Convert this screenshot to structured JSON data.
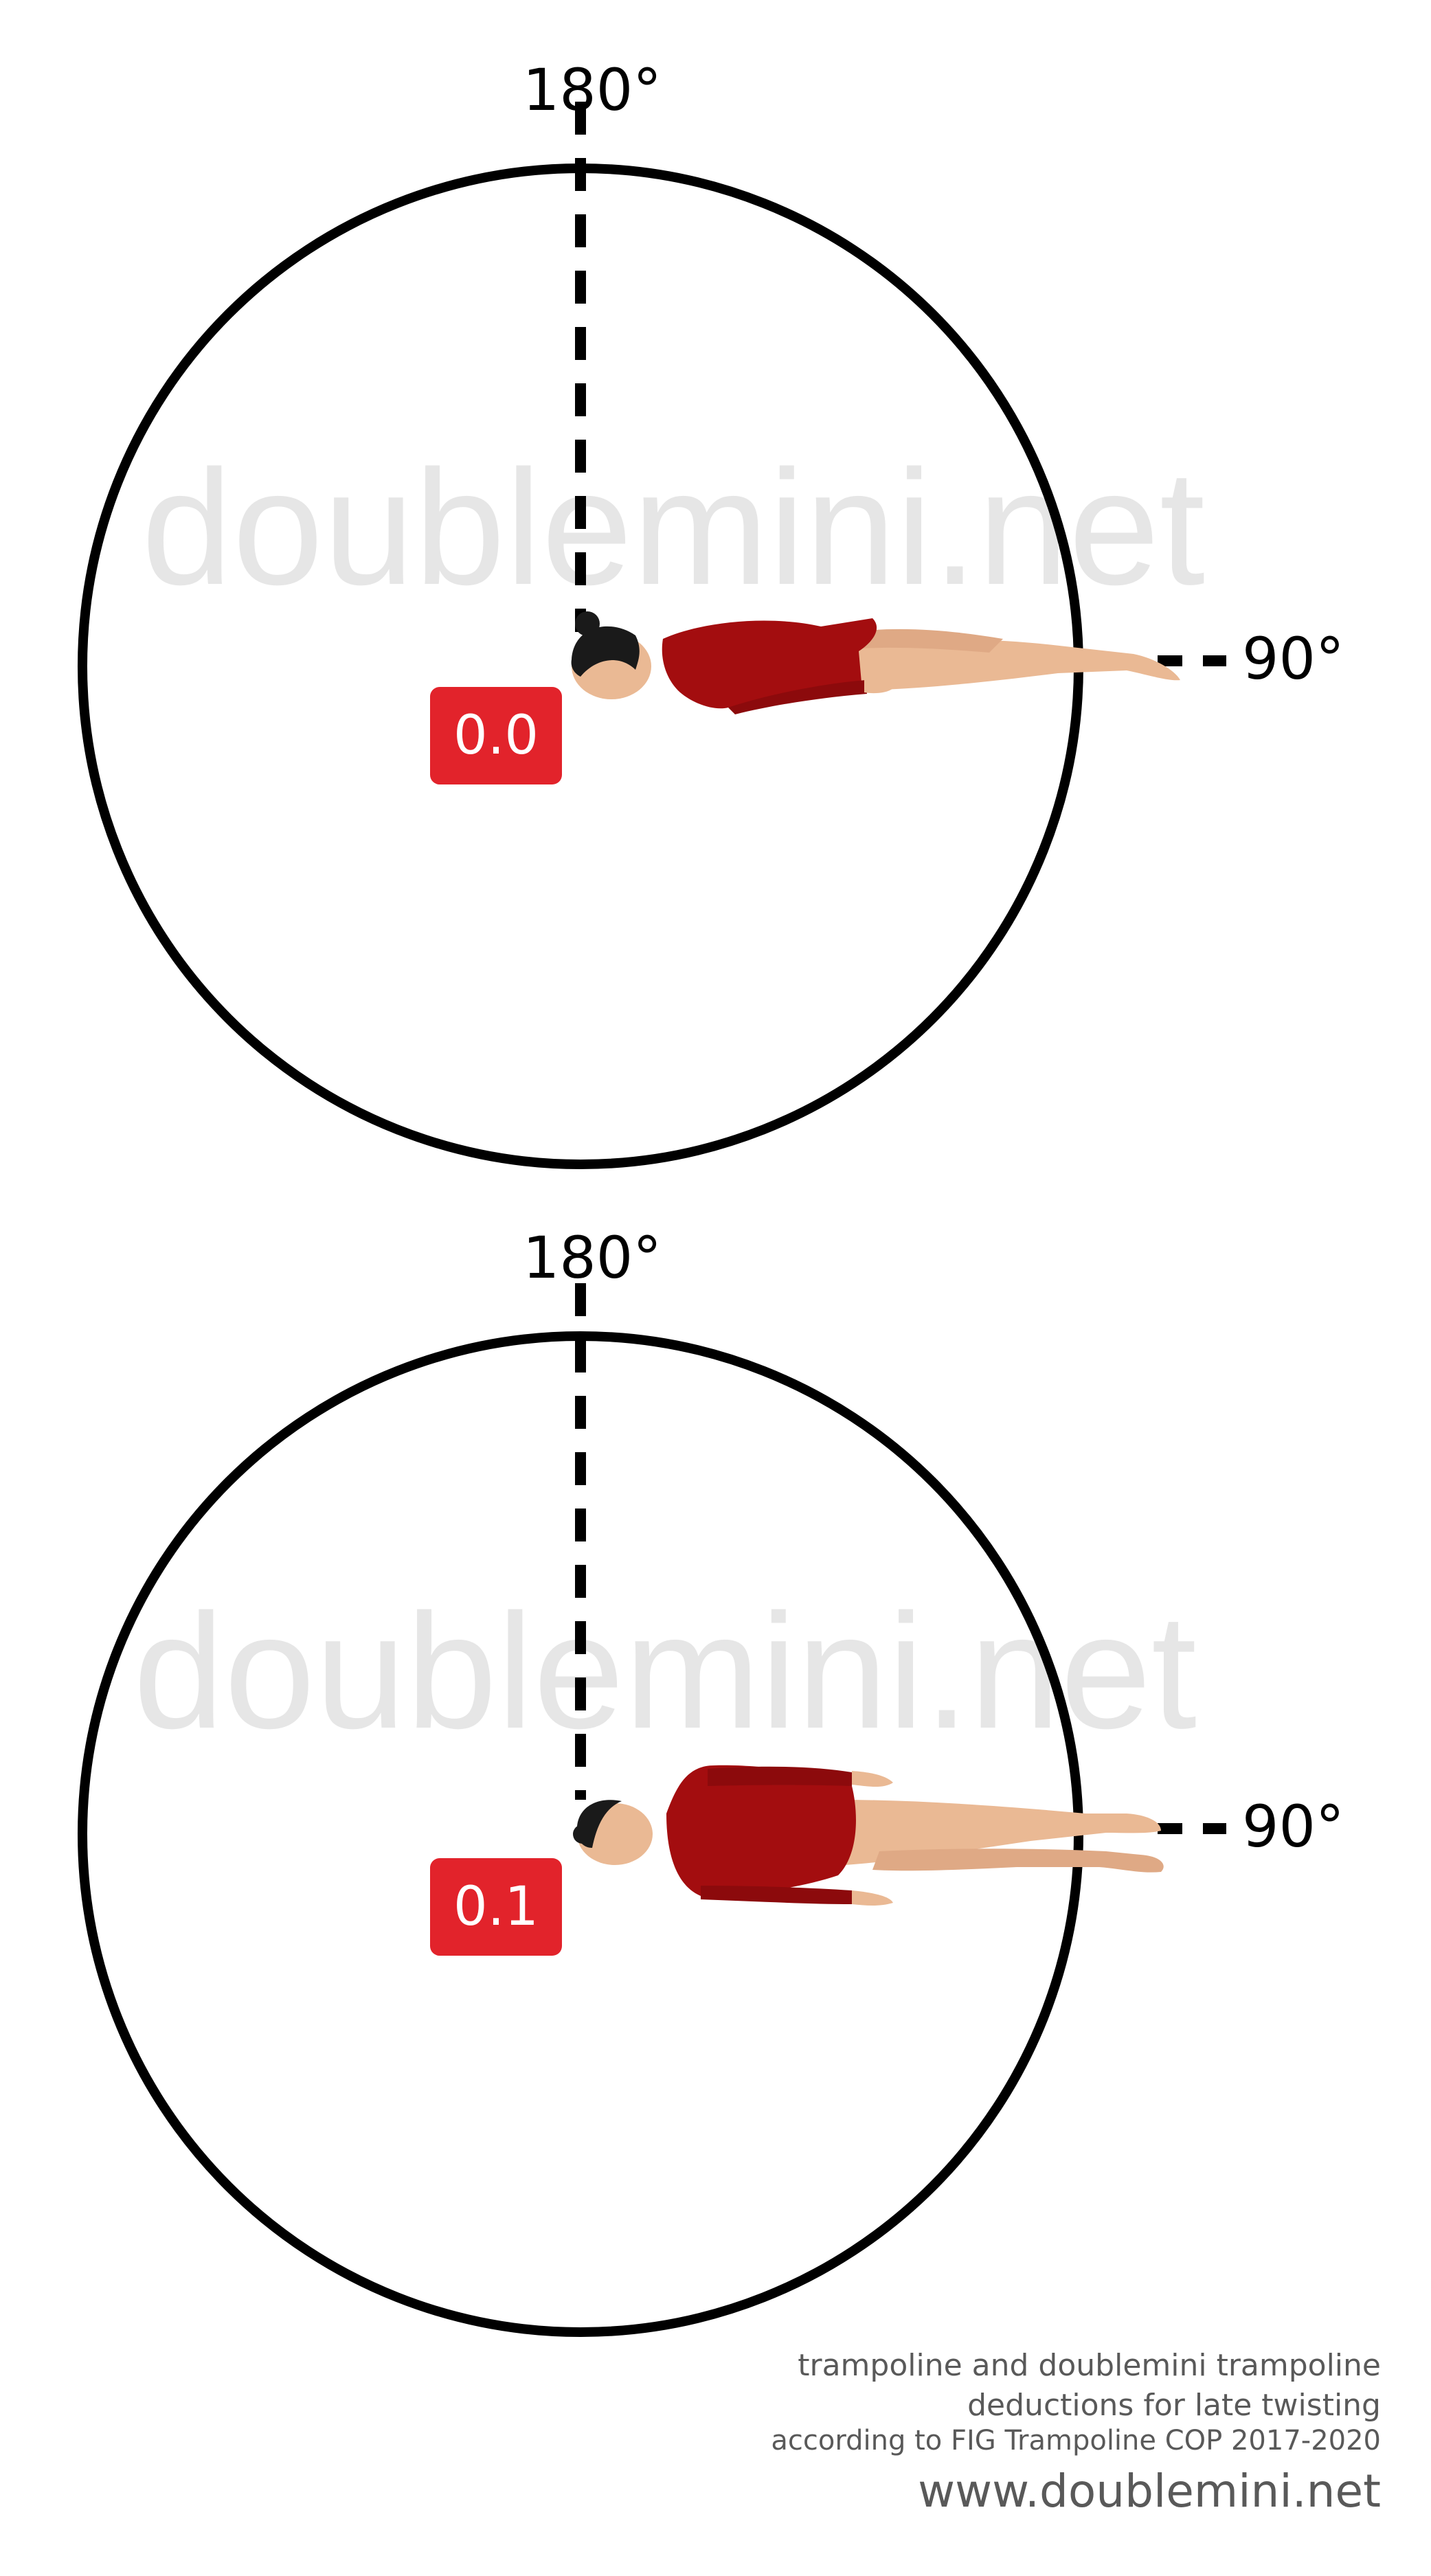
{
  "panels": [
    {
      "id": "top",
      "watermark": "doublemini.net",
      "angle_top_label": "180°",
      "angle_right_label": "90°",
      "deduction": "0.0",
      "figure": "gymnast lying face down, head at center, feet pointing to 90° mark"
    },
    {
      "id": "bottom",
      "watermark": "doublemini.net",
      "angle_top_label": "180°",
      "angle_right_label": "90°",
      "deduction": "0.1",
      "figure": "gymnast lying face up, head at center, feet pointing to 90° mark"
    }
  ],
  "footer": {
    "line1": "trampoline and doublemini trampoline",
    "line2": "deductions for late twisting",
    "line3": "according to FIG Trampoline COP 2017-2020",
    "line4": "www.doublemini.net"
  },
  "colors": {
    "circle": "#000000",
    "badge": "#e2232b",
    "badge_text": "#ffffff",
    "watermark": "#e6e6e6",
    "leotard": "#a30d0f",
    "skin": "#eab994",
    "hair": "#1a1a1a",
    "footer_text": "#595959"
  }
}
